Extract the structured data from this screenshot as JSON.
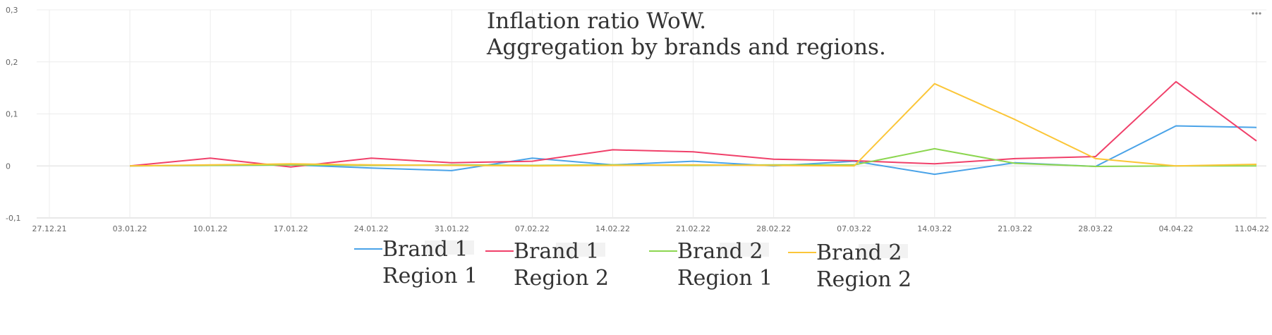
{
  "chart_data": {
    "type": "line",
    "title_lines": [
      "Inflation ratio WoW.",
      "Aggregation by brands and regions."
    ],
    "x": [
      "27.12.21",
      "03.01.22",
      "10.01.22",
      "17.01.22",
      "24.01.22",
      "31.01.22",
      "07.02.22",
      "14.02.22",
      "21.02.22",
      "28.02.22",
      "07.03.22",
      "14.03.22",
      "21.03.22",
      "28.03.22",
      "04.04.22",
      "11.04.22"
    ],
    "y_ticks": [
      "0,3",
      "0,2",
      "0,1",
      "0",
      "-0,1"
    ],
    "ylim": [
      -0.1,
      0.3
    ],
    "grid": true,
    "legend_position": "bottom",
    "series": [
      {
        "name_lines": [
          "Brand 1",
          "Region 1"
        ],
        "color": "#4aa3e8",
        "values": [
          null,
          0,
          0.001,
          0.002,
          -0.004,
          -0.009,
          0.015,
          0.002,
          0.009,
          0.0,
          0.009,
          -0.016,
          0.006,
          -0.001,
          0.077,
          0.074
        ]
      },
      {
        "name_lines": [
          "Brand 1",
          "Region 2"
        ],
        "color": "#f0406a",
        "values": [
          null,
          0,
          0.015,
          -0.002,
          0.015,
          0.006,
          0.009,
          0.031,
          0.027,
          0.013,
          0.01,
          0.004,
          0.014,
          0.018,
          0.162,
          0.048
        ]
      },
      {
        "name_lines": [
          "Brand 2",
          "Region 1"
        ],
        "color": "#8cd650",
        "values": [
          null,
          0,
          0.001,
          0.002,
          0.001,
          0.002,
          0.001,
          0.002,
          0.001,
          0.002,
          0.002,
          0.033,
          0.005,
          -0.001,
          0.0,
          0.0
        ]
      },
      {
        "name_lines": [
          "Brand 2",
          "Region 2"
        ],
        "color": "#fbc638",
        "values": [
          null,
          0,
          0.002,
          0.004,
          0.002,
          0.001,
          0.0,
          0.001,
          0.002,
          0.001,
          0.0,
          0.158,
          0.089,
          0.014,
          0.0,
          0.003
        ]
      }
    ]
  },
  "menu_icon": "more-horizontal-icon"
}
